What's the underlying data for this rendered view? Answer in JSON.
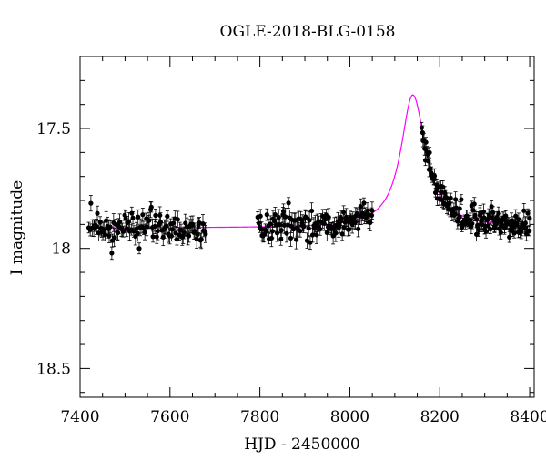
{
  "chart_data": {
    "type": "scatter",
    "title": "OGLE-2018-BLG-0158",
    "xlabel": "HJD - 2450000",
    "ylabel": "I magnitude",
    "xlim": [
      7400,
      8410
    ],
    "ylim": [
      18.62,
      17.2
    ],
    "y_inverted": true,
    "x_major_ticks": [
      7400,
      7600,
      7800,
      8000,
      8200,
      8400
    ],
    "x_minor_step": 50,
    "y_major_ticks": [
      17.5,
      18,
      18.5
    ],
    "y_minor_step": 0.1,
    "x_tick_labels": [
      "7400",
      "7600",
      "7800",
      "8000",
      "8200",
      "8400"
    ],
    "y_tick_labels": [
      "17.5",
      "18",
      "18.5"
    ],
    "grid": false,
    "model_color": "#ff00ff",
    "point_color": "#000000",
    "model": {
      "name": "",
      "baseline": 17.915,
      "peak_time": 8140,
      "peak_mag": 17.36,
      "rise_timescale": 32,
      "decline_timescale": 35
    },
    "segments": [
      {
        "x_start": 7420,
        "x_end": 7680,
        "count": 110,
        "scatter": 0.03,
        "error": 0.03
      },
      {
        "x_start": 7795,
        "x_end": 8050,
        "count": 120,
        "scatter": 0.03,
        "error": 0.03
      },
      {
        "x_start": 8160,
        "x_end": 8400,
        "count": 150,
        "scatter": 0.025,
        "error": 0.025
      }
    ]
  }
}
